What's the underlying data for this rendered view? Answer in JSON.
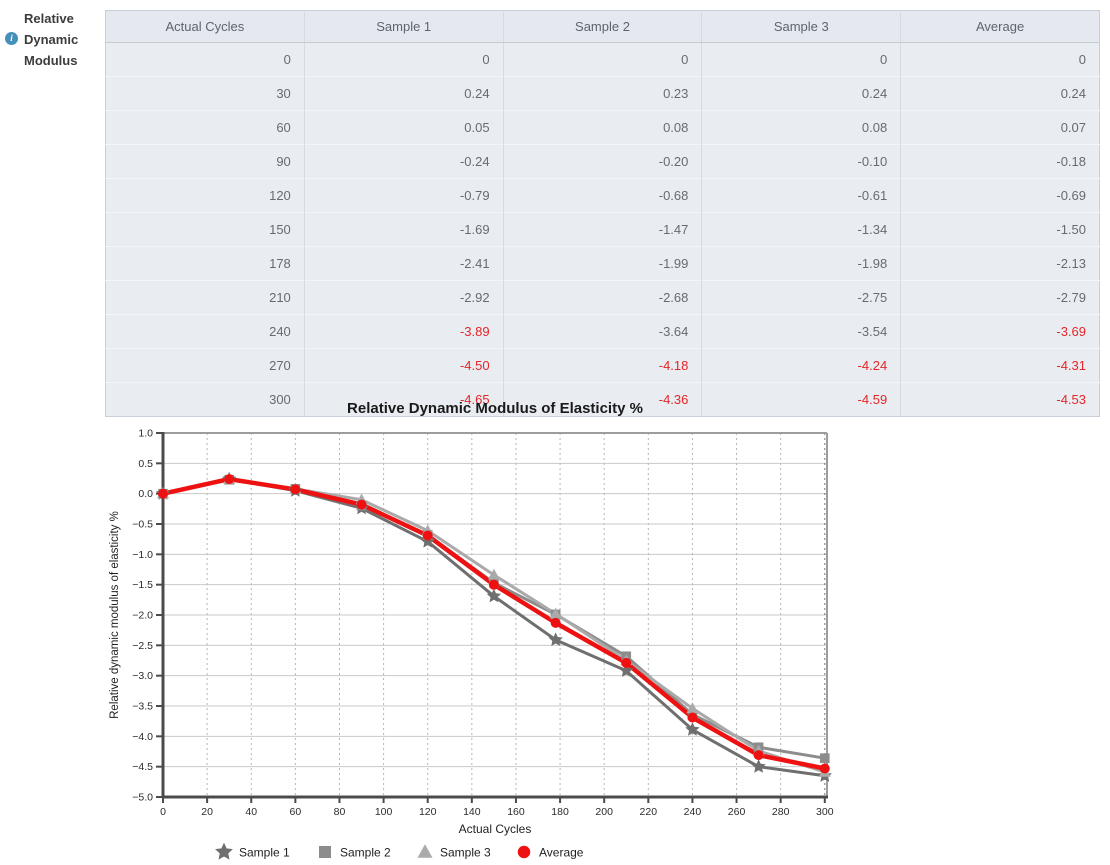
{
  "sidebar": {
    "label": "Relative Dynamic Modulus",
    "info_glyph": "i",
    "info_color": "#4490ba"
  },
  "table": {
    "headers": [
      "Actual Cycles",
      "Sample 1",
      "Sample 2",
      "Sample 3",
      "Average"
    ],
    "alert_color": "#e52528",
    "rows": [
      {
        "cells": [
          "0",
          "0",
          "0",
          "0",
          "0"
        ],
        "flags": [
          false,
          false,
          false,
          false,
          false
        ]
      },
      {
        "cells": [
          "30",
          "0.24",
          "0.23",
          "0.24",
          "0.24"
        ],
        "flags": [
          false,
          false,
          false,
          false,
          false
        ]
      },
      {
        "cells": [
          "60",
          "0.05",
          "0.08",
          "0.08",
          "0.07"
        ],
        "flags": [
          false,
          false,
          false,
          false,
          false
        ]
      },
      {
        "cells": [
          "90",
          "-0.24",
          "-0.20",
          "-0.10",
          "-0.18"
        ],
        "flags": [
          false,
          false,
          false,
          false,
          false
        ]
      },
      {
        "cells": [
          "120",
          "-0.79",
          "-0.68",
          "-0.61",
          "-0.69"
        ],
        "flags": [
          false,
          false,
          false,
          false,
          false
        ]
      },
      {
        "cells": [
          "150",
          "-1.69",
          "-1.47",
          "-1.34",
          "-1.50"
        ],
        "flags": [
          false,
          false,
          false,
          false,
          false
        ]
      },
      {
        "cells": [
          "178",
          "-2.41",
          "-1.99",
          "-1.98",
          "-2.13"
        ],
        "flags": [
          false,
          false,
          false,
          false,
          false
        ]
      },
      {
        "cells": [
          "210",
          "-2.92",
          "-2.68",
          "-2.75",
          "-2.79"
        ],
        "flags": [
          false,
          false,
          false,
          false,
          false
        ]
      },
      {
        "cells": [
          "240",
          "-3.89",
          "-3.64",
          "-3.54",
          "-3.69"
        ],
        "flags": [
          false,
          true,
          false,
          false,
          true
        ]
      },
      {
        "cells": [
          "270",
          "-4.50",
          "-4.18",
          "-4.24",
          "-4.31"
        ],
        "flags": [
          false,
          true,
          true,
          true,
          true
        ]
      },
      {
        "cells": [
          "300",
          "-4.65",
          "-4.36",
          "-4.59",
          "-4.53"
        ],
        "flags": [
          false,
          true,
          true,
          true,
          true
        ]
      }
    ]
  },
  "chart_data": {
    "type": "line",
    "title": "Relative Dynamic Modulus of Elasticity %",
    "xlabel": "Actual Cycles",
    "ylabel": "Relative dynamic modulus of elasticity %",
    "x": [
      0,
      30,
      60,
      90,
      120,
      150,
      178,
      210,
      240,
      270,
      300
    ],
    "series": [
      {
        "name": "Sample 1",
        "marker": "star",
        "color": "#6f6f6f",
        "line_width": 3,
        "values": [
          0,
          0.24,
          0.05,
          -0.24,
          -0.79,
          -1.69,
          -2.41,
          -2.92,
          -3.89,
          -4.5,
          -4.65
        ]
      },
      {
        "name": "Sample 2",
        "marker": "square",
        "color": "#8c8c8c",
        "line_width": 3,
        "values": [
          0,
          0.23,
          0.08,
          -0.2,
          -0.68,
          -1.47,
          -1.99,
          -2.68,
          -3.64,
          -4.18,
          -4.36
        ]
      },
      {
        "name": "Sample 3",
        "marker": "triangle",
        "color": "#aaaaaa",
        "line_width": 3,
        "values": [
          0,
          0.24,
          0.08,
          -0.1,
          -0.61,
          -1.34,
          -1.98,
          -2.75,
          -3.54,
          -4.24,
          -4.59
        ]
      },
      {
        "name": "Average",
        "marker": "circle",
        "color": "#ee1111",
        "line_width": 4.5,
        "values": [
          0,
          0.24,
          0.07,
          -0.18,
          -0.69,
          -1.5,
          -2.13,
          -2.79,
          -3.69,
          -4.31,
          -4.53
        ]
      }
    ],
    "xlim": [
      0,
      301
    ],
    "ylim": [
      -5.0,
      1.0
    ],
    "xticks": [
      0,
      20,
      40,
      60,
      80,
      100,
      120,
      140,
      160,
      180,
      200,
      220,
      240,
      260,
      280,
      300
    ],
    "yticks": [
      1.0,
      0.5,
      0.0,
      -0.5,
      -1.0,
      -1.5,
      -2.0,
      -2.5,
      -3.0,
      -3.5,
      -4.0,
      -4.5,
      -5.0
    ],
    "grid": "horizontal-solid vertical-dashed",
    "legend_position": "bottom"
  }
}
